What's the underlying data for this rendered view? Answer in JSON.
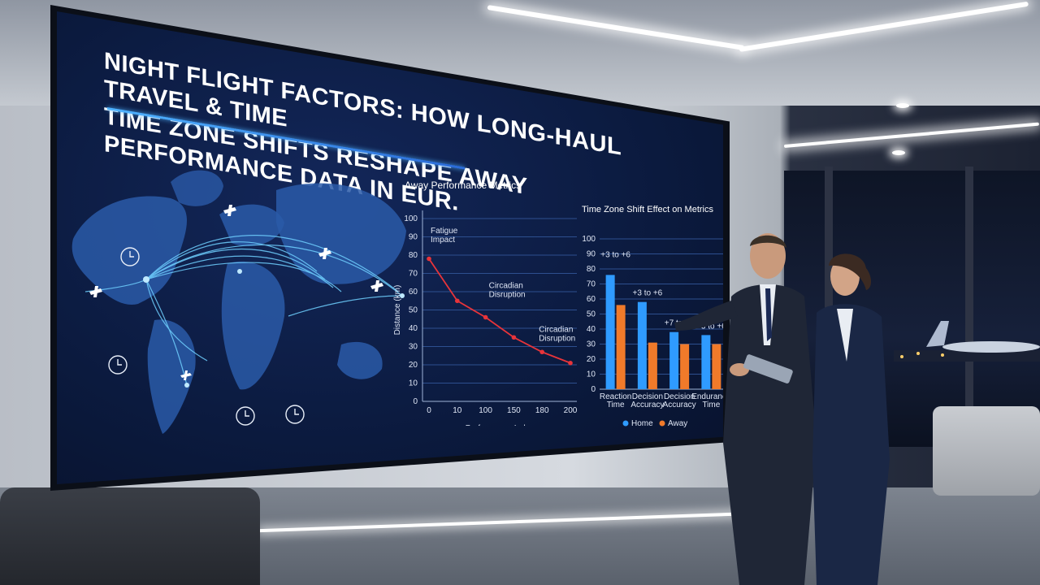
{
  "screen": {
    "title_line1": "NIGHT FLIGHT FACTORS: HOW LONG-HAUL TRAVEL & TIME",
    "title_line2": "TIME ZONE SHIFTS RESHAPE AWAY PERFORMANCE DATA IN EUR."
  },
  "map": {
    "icons": [
      "airplane-icon",
      "clock-icon"
    ]
  },
  "chart_data": [
    {
      "type": "line",
      "title": "Away Performance Metrics",
      "xlabel": "Performance Index",
      "ylabel": "Distance (km)",
      "x_ticks": [
        "0",
        "10",
        "100",
        "150",
        "180",
        "200"
      ],
      "y_ticks": [
        "0",
        "10",
        "20",
        "30",
        "40",
        "50",
        "60",
        "70",
        "80",
        "90",
        "100"
      ],
      "ylim": [
        0,
        100
      ],
      "series": [
        {
          "x": [
            0,
            10,
            100,
            150,
            180,
            200
          ],
          "values": [
            78,
            55,
            46,
            35,
            27,
            21
          ]
        }
      ],
      "annotations": [
        {
          "text": "Fatigue Impact"
        },
        {
          "text": "Circadian Disruption"
        },
        {
          "text": "Circadian Disruption"
        }
      ],
      "color": "#e8343a"
    },
    {
      "type": "bar",
      "title": "Time Zone Shift Effect on Metrics",
      "categories": [
        "Reaction Time",
        "Decision Accuracy",
        "Decision Accuracy",
        "Endurance Time"
      ],
      "y_ticks": [
        "0",
        "10",
        "20",
        "30",
        "40",
        "50",
        "60",
        "70",
        "80",
        "90",
        "100"
      ],
      "ylim": [
        0,
        100
      ],
      "series": [
        {
          "name": "Home",
          "values": [
            76,
            58,
            38,
            36
          ],
          "color": "#2f9bff"
        },
        {
          "name": "Away",
          "values": [
            56,
            31,
            30,
            30
          ],
          "color": "#f07a2a"
        }
      ],
      "annotations": [
        "+3 to +6",
        "+3 to +6",
        "+7 to +7",
        "+3 to +6"
      ],
      "legend": "bottom"
    }
  ]
}
